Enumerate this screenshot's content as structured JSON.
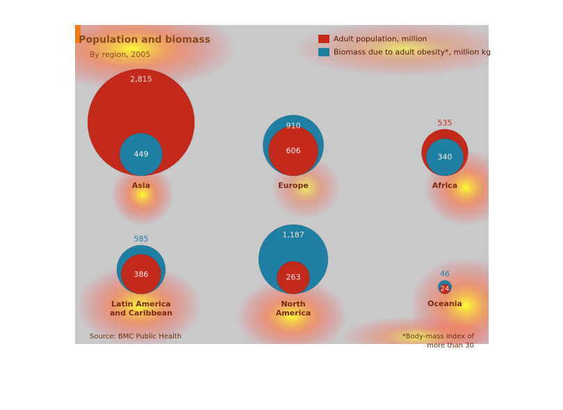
{
  "chart_data": {
    "type": "bubble",
    "title": "Population and biomass",
    "subtitle": "By region, 2005",
    "categories": [
      "Asia",
      "Europe",
      "Africa",
      "Latin America\nand Caribbean",
      "North\nAmerica",
      "Oceania"
    ],
    "series": [
      {
        "name": "Adult population, million",
        "color": "#c42a1c",
        "values": [
          2815,
          606,
          535,
          386,
          263,
          24
        ],
        "value_labels": [
          "2,815",
          "606",
          "535",
          "386",
          "263",
          "24"
        ]
      },
      {
        "name": "Biomass due to adult obesity*, million kg",
        "color": "#1f7fa3",
        "values": [
          449,
          910,
          340,
          585,
          1187,
          46
        ],
        "value_labels": [
          "449",
          "910",
          "340",
          "585",
          "1,187",
          "46"
        ]
      }
    ],
    "source": "Source: BMC Public Health",
    "footnote": "*Body-mass index of more than 30"
  }
}
